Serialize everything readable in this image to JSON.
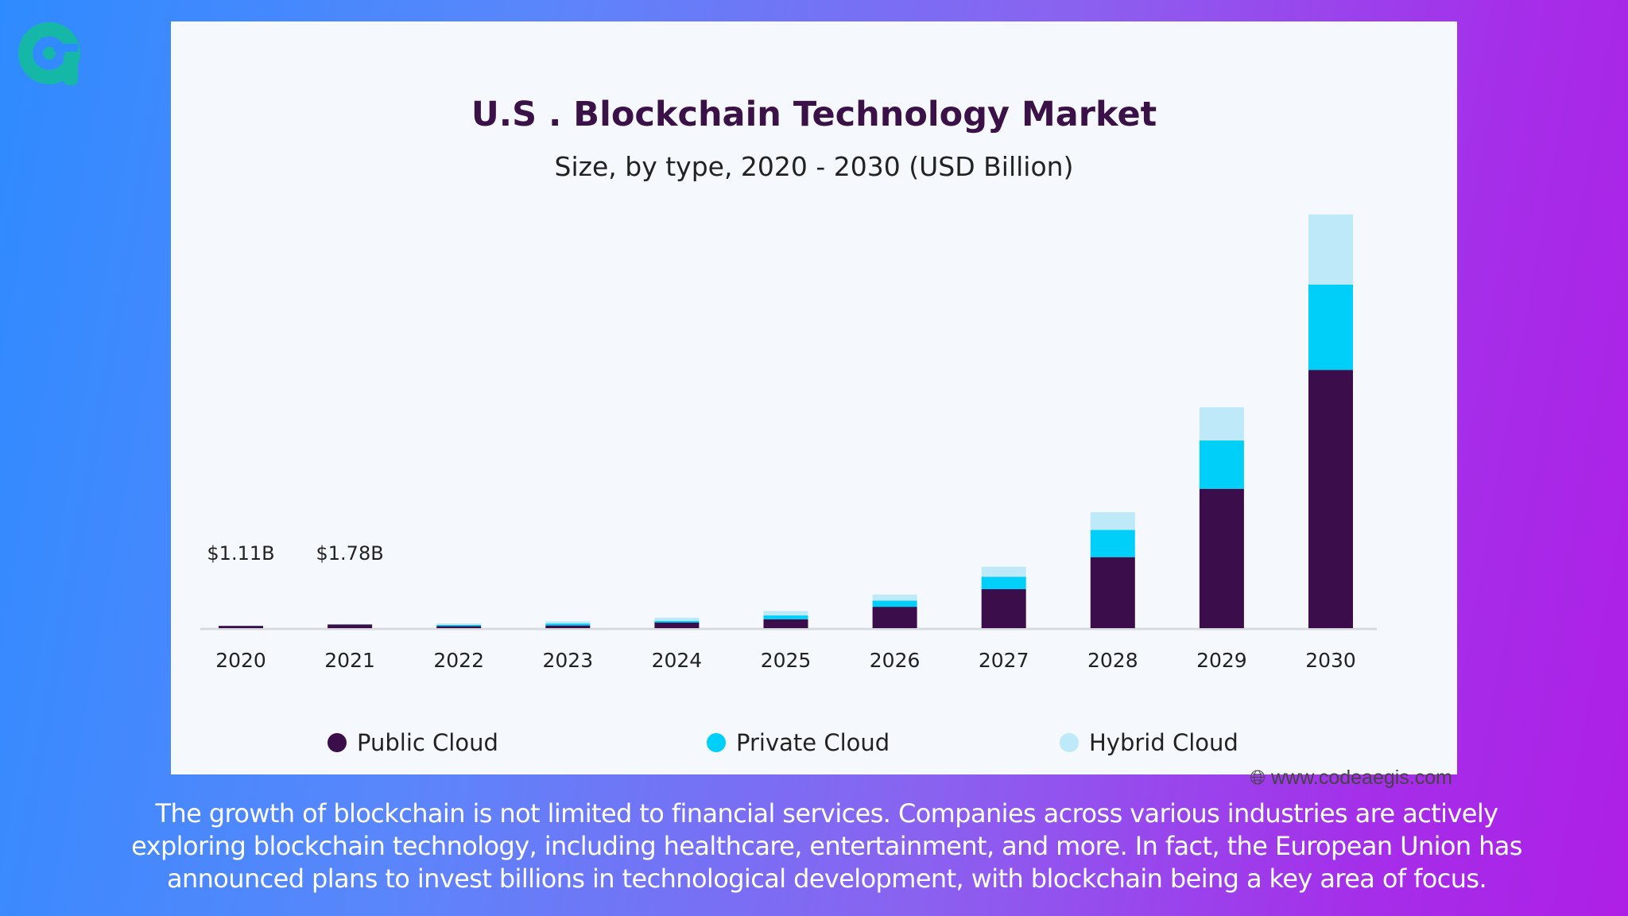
{
  "colors": {
    "public": "#3b0d4a",
    "private": "#00cffa",
    "hybrid": "#bde9f9",
    "logo": "#15b8a6"
  },
  "icons": {
    "logo": "brand-logo-icon",
    "watermark": "globe-icon"
  },
  "watermark": "www.codeaegis.com",
  "caption": "The growth of blockchain is not limited to financial services. Companies across various industries are actively exploring blockchain technology, including healthcare, entertainment, and more. In fact, the European Union has announced plans to invest billions in technological development, with blockchain being a key area of focus.",
  "chart_data": {
    "type": "bar",
    "stacked": true,
    "title": "U.S . Blockchain Technology Market",
    "subtitle": "Size, by type, 2020 - 2030 (USD Billion)",
    "xlabel": "",
    "ylabel": "",
    "ylim": [
      0,
      200
    ],
    "grid": false,
    "legend_position": "bottom",
    "categories": [
      "2020",
      "2021",
      "2022",
      "2023",
      "2024",
      "2025",
      "2026",
      "2027",
      "2028",
      "2029",
      "2030"
    ],
    "series": [
      {
        "name": "Public Cloud",
        "values": [
          1.03,
          1.65,
          0.95,
          1.2,
          2.5,
          4.0,
          9.6,
          17.5,
          31.9,
          62.6,
          116.0
        ]
      },
      {
        "name": "Private Cloud",
        "values": [
          0.05,
          0.08,
          0.5,
          0.9,
          0.8,
          1.7,
          2.8,
          5.6,
          12.2,
          21.7,
          38.3
        ]
      },
      {
        "name": "Hybrid Cloud",
        "values": [
          0.03,
          0.05,
          0.7,
          1.0,
          1.4,
          2.0,
          2.7,
          4.5,
          8.0,
          14.9,
          31.5
        ]
      }
    ],
    "data_labels": [
      {
        "category": "2020",
        "text": "$1.11B"
      },
      {
        "category": "2021",
        "text": "$1.78B"
      }
    ]
  }
}
